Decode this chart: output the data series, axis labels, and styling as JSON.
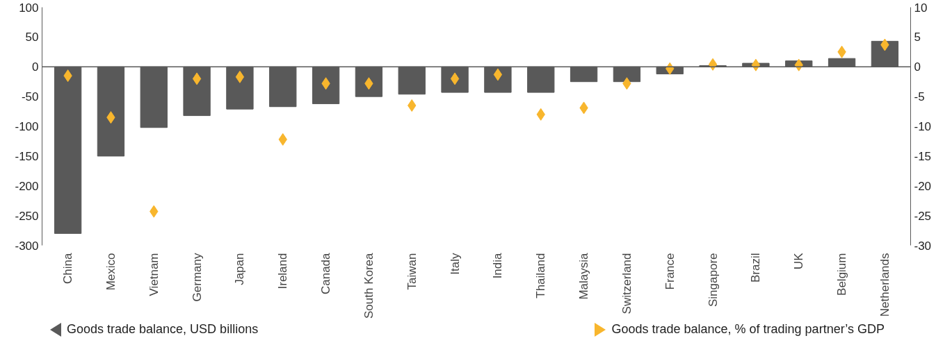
{
  "chart_data": {
    "type": "bar",
    "categories": [
      "China",
      "Mexico",
      "Vietnam",
      "Germany",
      "Japan",
      "Ireland",
      "Canada",
      "South Korea",
      "Taiwan",
      "Italy",
      "India",
      "Thailand",
      "Malaysia",
      "Switzerland",
      "France",
      "Singapore",
      "Brazil",
      "UK",
      "Belgium",
      "Netherlands"
    ],
    "series": [
      {
        "name": "Goods trade balance, USD billions",
        "color": "#595959",
        "values": [
          -280,
          -150,
          -102,
          -82,
          -71,
          -67,
          -62,
          -50,
          -46,
          -43,
          -43,
          -43,
          -25,
          -25,
          -12,
          2,
          6,
          10,
          14,
          43
        ]
      },
      {
        "name": "Goods trade balance, % of trading partner’s GDP",
        "type": "scatter",
        "axis": "y2",
        "color": "#f8b62d",
        "values": [
          -1.5,
          -8.5,
          -24.3,
          -2,
          -1.7,
          -12.2,
          -2.8,
          -2.8,
          -6.5,
          -2,
          -1.3,
          -8,
          -6.9,
          -2.8,
          -0.3,
          0.4,
          0.3,
          0.3,
          2.5,
          3.7
        ]
      }
    ],
    "ylim": [
      -300,
      100
    ],
    "yticks": [
      -300,
      -250,
      -200,
      -150,
      -100,
      -50,
      0,
      50,
      100
    ],
    "y2lim": [
      -30,
      10
    ],
    "y2ticks": [
      -30,
      -25,
      -20,
      -15,
      -10,
      -5,
      0,
      5,
      10
    ],
    "ref_lines": [
      {
        "axis": "y",
        "value": 0,
        "color": "#595959"
      }
    ],
    "marker": "diamond",
    "grid": false,
    "legend": "bottom"
  }
}
